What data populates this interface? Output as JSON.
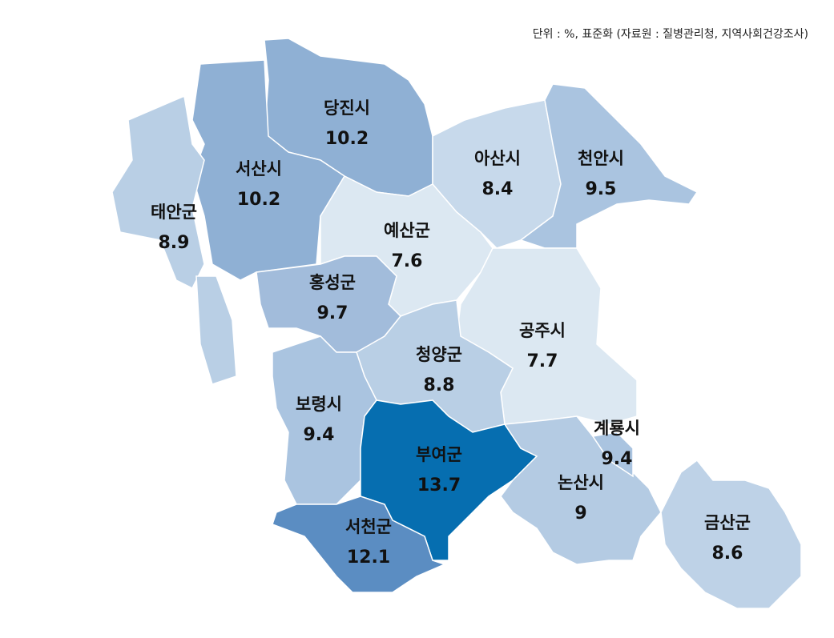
{
  "unit_note": "단위 : %, 표준화 (자료원 : 질병관리청, 지역사회건강조사)",
  "regions": [
    {
      "id": "dangjin",
      "name": "당진시",
      "value": "10.2",
      "color": "#8fb0d4"
    },
    {
      "id": "seosan",
      "name": "서산시",
      "value": "10.2",
      "color": "#8fb0d4"
    },
    {
      "id": "taean",
      "name": "태안군",
      "value": "8.9",
      "color": "#b9cfe5"
    },
    {
      "id": "asan",
      "name": "아산시",
      "value": "8.4",
      "color": "#c7d9eb"
    },
    {
      "id": "cheonan",
      "name": "천안시",
      "value": "9.5",
      "color": "#aac4e0"
    },
    {
      "id": "yesan",
      "name": "예산군",
      "value": "7.6",
      "color": "#dce8f2"
    },
    {
      "id": "hongseong",
      "name": "홍성군",
      "value": "9.7",
      "color": "#a2bcdb"
    },
    {
      "id": "gongju",
      "name": "공주시",
      "value": "7.7",
      "color": "#dce8f2"
    },
    {
      "id": "cheongyang",
      "name": "청양군",
      "value": "8.8",
      "color": "#b9cfe5"
    },
    {
      "id": "boryeong",
      "name": "보령시",
      "value": "9.4",
      "color": "#aac4e0"
    },
    {
      "id": "buyeo",
      "name": "부여군",
      "value": "13.7",
      "color": "#066eb0"
    },
    {
      "id": "seocheon",
      "name": "서천군",
      "value": "12.1",
      "color": "#5b8dc2"
    },
    {
      "id": "nonsan",
      "name": "논산시",
      "value": "9",
      "color": "#b4cbe3"
    },
    {
      "id": "gyeryong",
      "name": "계룡시",
      "value": "9.4",
      "color": "#aac4e0"
    },
    {
      "id": "geumsan",
      "name": "금산군",
      "value": "8.6",
      "color": "#bed2e7"
    }
  ]
}
